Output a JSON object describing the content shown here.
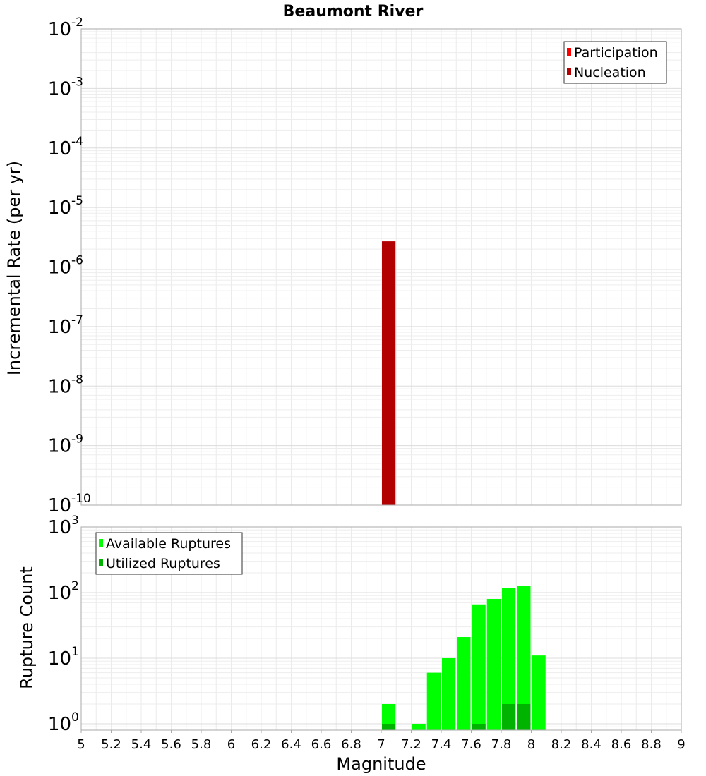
{
  "chart_data": {
    "title": "Beaumont River",
    "xlabel": "Magnitude",
    "x_ticks": [
      "5",
      "5.2",
      "5.4",
      "5.6",
      "5.8",
      "6",
      "6.2",
      "6.4",
      "6.6",
      "6.8",
      "7",
      "7.2",
      "7.4",
      "7.6",
      "7.8",
      "8",
      "8.2",
      "8.4",
      "8.6",
      "8.8",
      "9"
    ],
    "xlim": [
      5,
      9
    ],
    "bin_width": 0.1,
    "panels": [
      {
        "type": "bar",
        "ylabel": "Incremental Rate (per yr)",
        "yscale": "log",
        "ylim": [
          1e-10,
          0.01
        ],
        "y_ticks": [
          {
            "base": "10",
            "exp": "-2"
          },
          {
            "base": "10",
            "exp": "-3"
          },
          {
            "base": "10",
            "exp": "-4"
          },
          {
            "base": "10",
            "exp": "-5"
          },
          {
            "base": "10",
            "exp": "-6"
          },
          {
            "base": "10",
            "exp": "-7"
          },
          {
            "base": "10",
            "exp": "-8"
          },
          {
            "base": "10",
            "exp": "-9"
          },
          {
            "base": "10",
            "exp": "-10"
          }
        ],
        "legend_position": "top-right",
        "grid": true,
        "series": [
          {
            "name": "Participation",
            "color": "#ff0000",
            "x": [],
            "values": []
          },
          {
            "name": "Nucleation",
            "color": "#b30000",
            "x": [
              7.05
            ],
            "values": [
              2.7e-06
            ]
          }
        ]
      },
      {
        "type": "bar",
        "ylabel": "Rupture Count",
        "yscale": "log",
        "ylim": [
          0.8,
          1000
        ],
        "y_ticks": [
          {
            "base": "10",
            "exp": "3"
          },
          {
            "base": "10",
            "exp": "2"
          },
          {
            "base": "10",
            "exp": "1"
          },
          {
            "base": "10",
            "exp": "0"
          }
        ],
        "legend_position": "top-left",
        "grid": true,
        "series": [
          {
            "name": "Available Ruptures",
            "color": "#00ff00",
            "x": [
              7.05,
              7.25,
              7.35,
              7.45,
              7.55,
              7.65,
              7.75,
              7.85,
              7.95,
              8.05
            ],
            "values": [
              2,
              1,
              6,
              10,
              21,
              66,
              80,
              118,
              126,
              11
            ]
          },
          {
            "name": "Utilized Ruptures",
            "color": "#00b300",
            "x": [
              7.05,
              7.65,
              7.85,
              7.95
            ],
            "values": [
              1,
              1,
              2,
              2
            ]
          }
        ]
      }
    ]
  }
}
